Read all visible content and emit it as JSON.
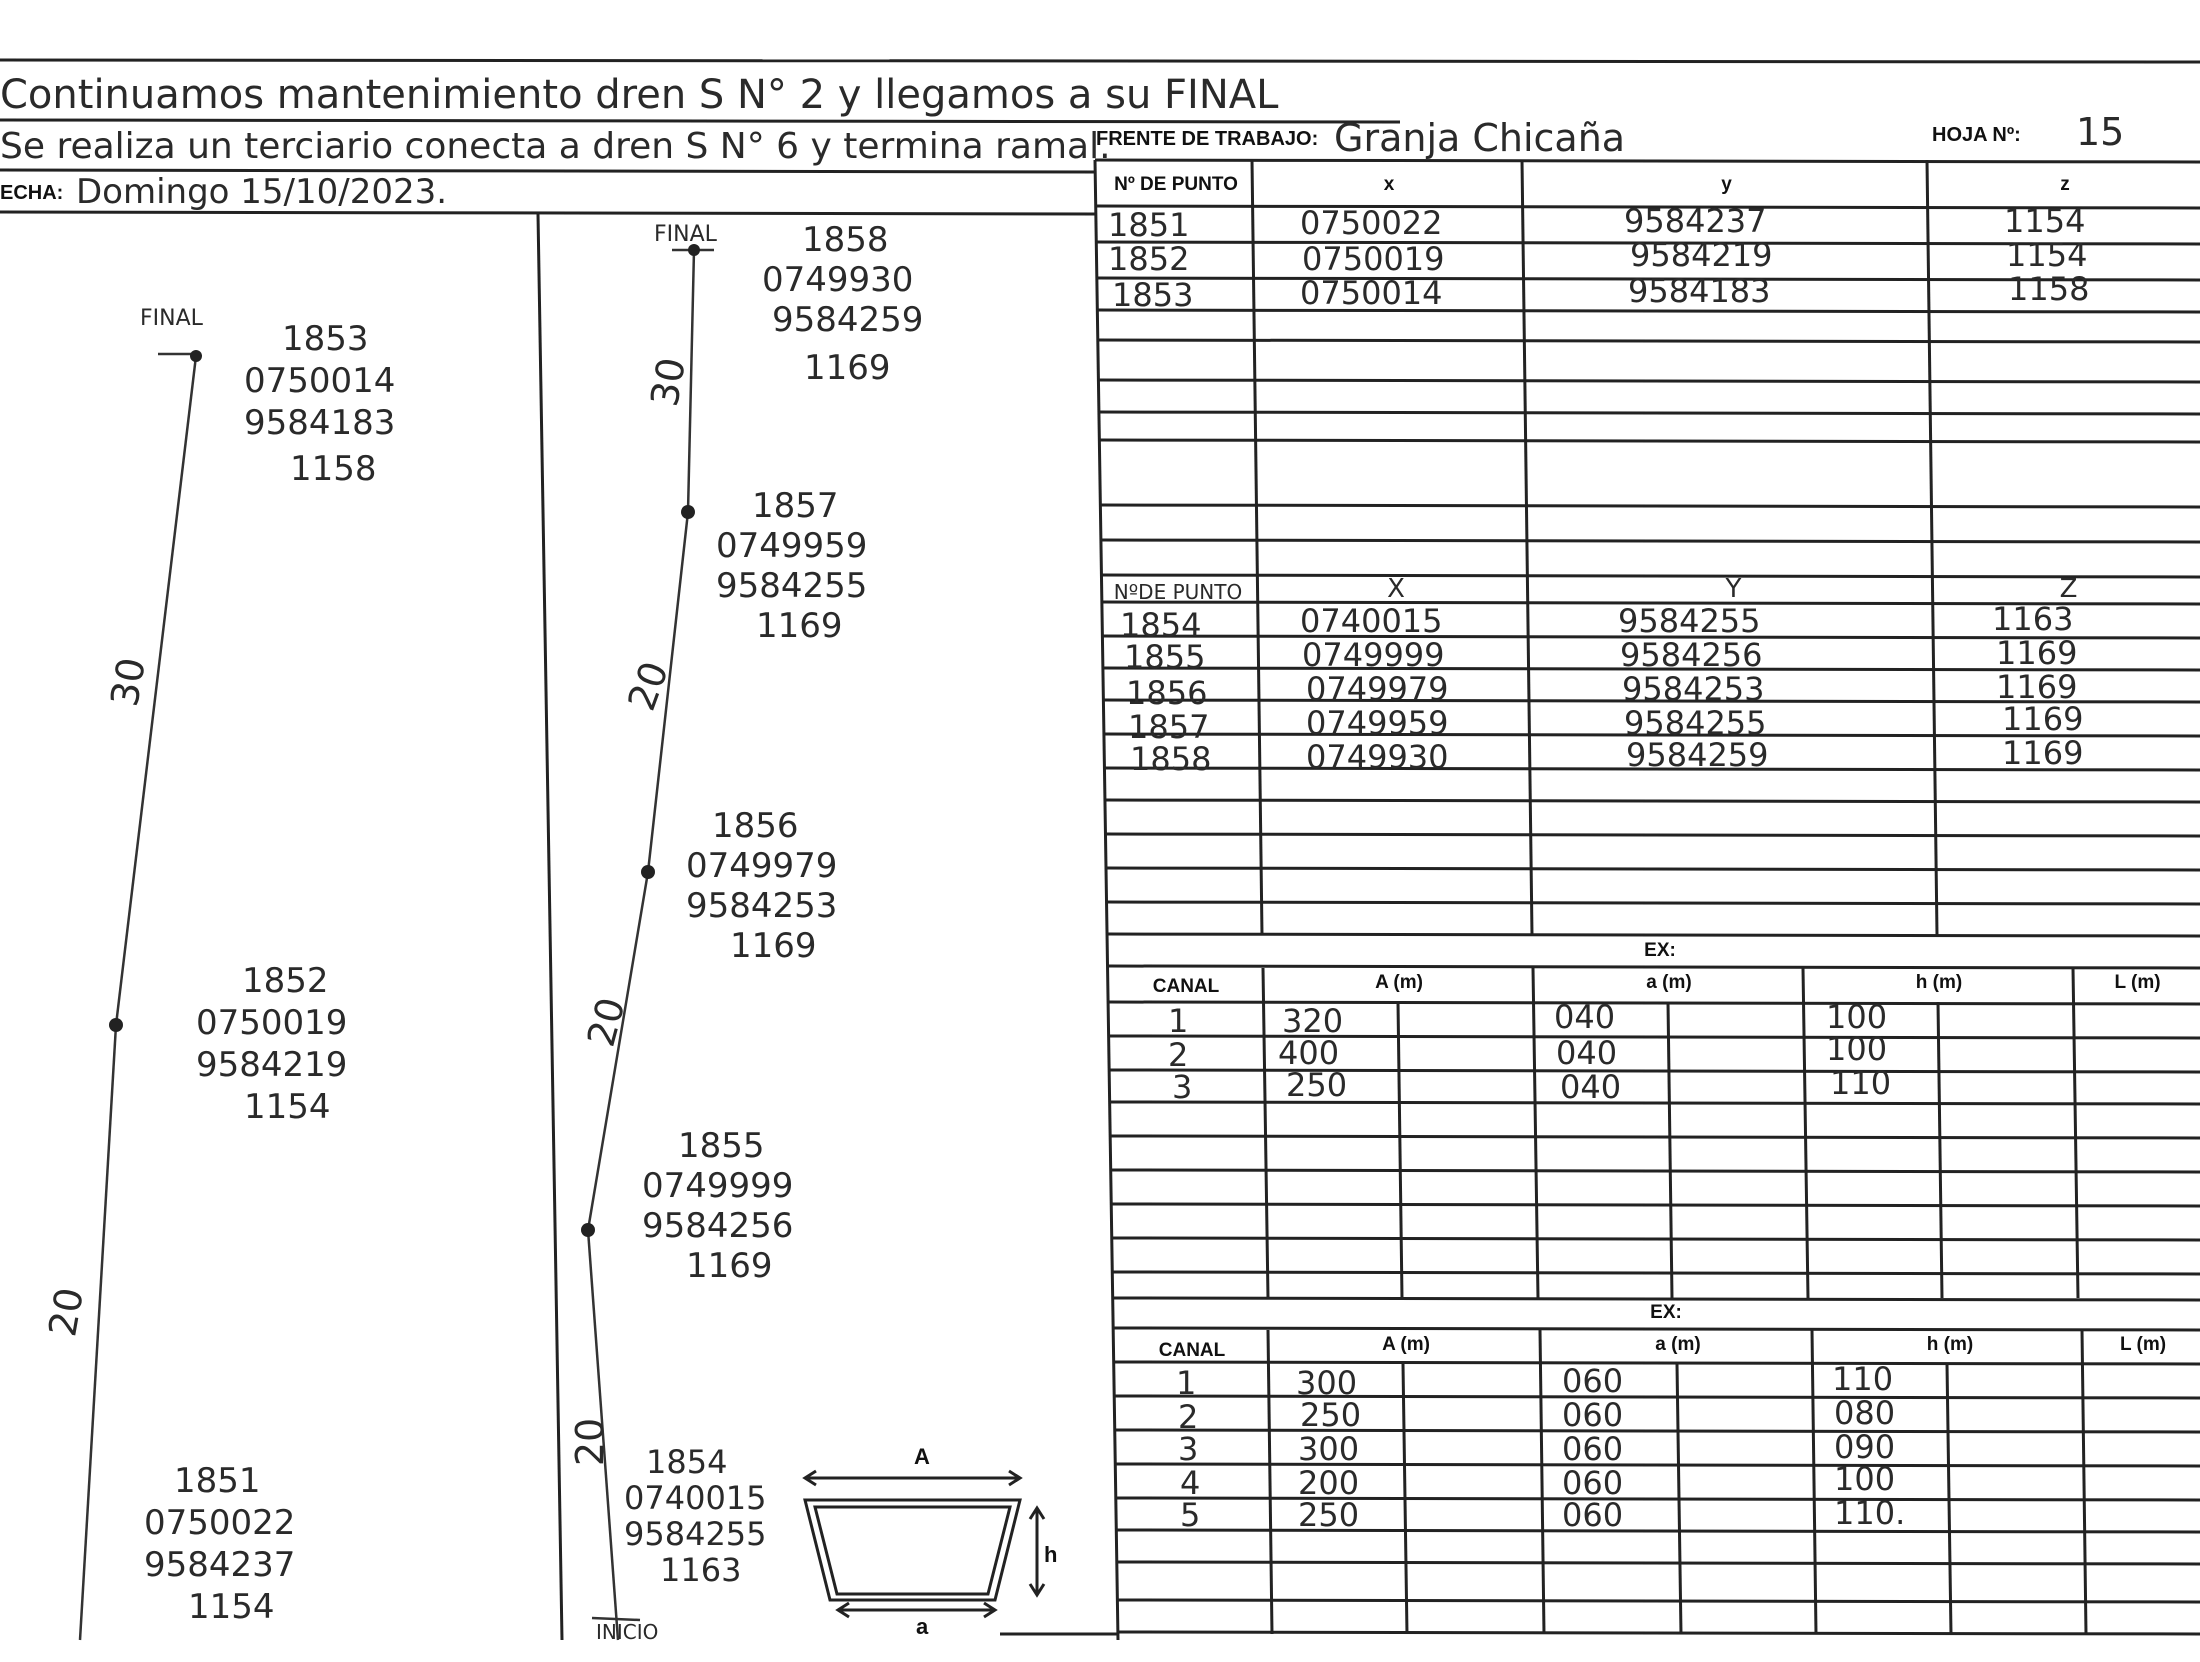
{
  "notes": {
    "line1": "Continuamos mantenimiento dren S N° 2 y llegamos a su FINAL",
    "line2": "Se realiza un terciario conecta a dren S N° 6 y termina ramal.",
    "fecha_label": "ECHA:",
    "fecha_value": "Domingo  15/10/2023."
  },
  "header": {
    "frente_label": "FRENTE DE TRABAJO:",
    "frente_value": "Granja  Chicaña",
    "hoja_label": "HOJA Nº:",
    "hoja_value": "15"
  },
  "table1": {
    "headers": [
      "Nº DE PUNTO",
      "x",
      "y",
      "z"
    ],
    "rows": [
      [
        "1851",
        "0750022",
        "9584237",
        "1154"
      ],
      [
        "1852",
        "0750019",
        "9584219",
        "1154"
      ],
      [
        "1853",
        "0750014",
        "9584183",
        "1158"
      ]
    ]
  },
  "table2": {
    "headers": [
      "NºDE PUNTO",
      "X",
      "Y",
      "Z"
    ],
    "rows": [
      [
        "1854",
        "0740015",
        "9584255",
        "1163"
      ],
      [
        "1855",
        "0749999",
        "9584256",
        "1169"
      ],
      [
        "1856",
        "0749979",
        "9584253",
        "1169"
      ],
      [
        "1857",
        "0749959",
        "9584255",
        "1169"
      ],
      [
        "1858",
        "0749930",
        "9584259",
        "1169"
      ]
    ]
  },
  "ex1": {
    "title": "EX:",
    "headers": [
      "CANAL",
      "A (m)",
      "a (m)",
      "h (m)",
      "L (m)"
    ],
    "rows": [
      [
        "1",
        "320",
        "040",
        "100"
      ],
      [
        "2",
        "400",
        "040",
        "100"
      ],
      [
        "3",
        "250",
        "040",
        "110"
      ]
    ]
  },
  "ex2": {
    "title": "EX:",
    "headers": [
      "CANAL",
      "A (m)",
      "a (m)",
      "h (m)",
      "L (m)"
    ],
    "rows": [
      [
        "1",
        "300",
        "060",
        "110"
      ],
      [
        "2",
        "250",
        "060",
        "080"
      ],
      [
        "3",
        "300",
        "060",
        "090"
      ],
      [
        "4",
        "200",
        "060",
        "100"
      ],
      [
        "5",
        "250",
        "060",
        "110."
      ]
    ]
  },
  "sketch1": {
    "final_label": "FINAL",
    "segment_top": "30",
    "segment_bottom": "20",
    "points": [
      {
        "id": "1853",
        "x": "0750014",
        "y": "9584183",
        "z": "1158"
      },
      {
        "id": "1852",
        "x": "0750019",
        "y": "9584219",
        "z": "1154"
      },
      {
        "id": "1851",
        "x": "0750022",
        "y": "9584237",
        "z": "1154"
      }
    ]
  },
  "sketch2": {
    "final_label": "FINAL",
    "inicio_label": "INICIO",
    "segments": [
      "30",
      "20",
      "20",
      "20"
    ],
    "points": [
      {
        "id": "1858",
        "x": "0749930",
        "y": "9584259",
        "z": "1169"
      },
      {
        "id": "1857",
        "x": "0749959",
        "y": "9584255",
        "z": "1169"
      },
      {
        "id": "1856",
        "x": "0749979",
        "y": "9584253",
        "z": "1169"
      },
      {
        "id": "1855",
        "x": "0749999",
        "y": "9584256",
        "z": "1169"
      },
      {
        "id": "1854",
        "x": "0740015",
        "y": "9584255",
        "z": "1163"
      }
    ]
  },
  "trapezoid": {
    "top_label": "A",
    "bottom_label": "a",
    "height_label": "h"
  }
}
